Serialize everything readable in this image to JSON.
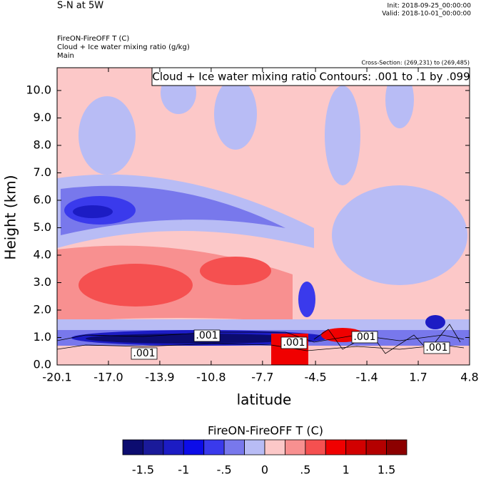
{
  "chart_data": {
    "type": "contour",
    "title": "S-N at 5W",
    "init": "Init: 2018-09-25_00:00:00",
    "valid": "Valid: 2018-10-01_00:00:00",
    "field_title": "FireON-FireOFF T   (C)",
    "contour_title": "Cloud + Ice water mixing ratio   (g/kg)",
    "subtitle": "Main",
    "cross_section": "Cross-Section: (269,231) to (269,485)",
    "contour_info": "Cloud + Ice water mixing ratio Contours: .001 to .1 by .099",
    "y_label": "Height (km)",
    "x_label": "latitude",
    "xlim": [
      -20.1,
      4.8
    ],
    "ylim": [
      0,
      10.83
    ],
    "xticks": [
      -20.1,
      {
        "value": -17,
        "label": "-17.0"
      },
      -13.9,
      -10.8,
      -7.7,
      -4.5,
      -1.4,
      1.7,
      4.8
    ],
    "yticks": [
      {
        "value": 0,
        "label": "0.0"
      },
      {
        "value": 1,
        "label": "1.0"
      },
      {
        "value": 2,
        "label": "2.0"
      },
      {
        "value": 3,
        "label": "3.0"
      },
      {
        "value": 4,
        "label": "4.0"
      },
      {
        "value": 5,
        "label": "5.0"
      },
      {
        "value": 6,
        "label": "6.0"
      },
      {
        "value": 7,
        "label": "7.0"
      },
      {
        "value": 8,
        "label": "8.0"
      },
      {
        "value": 9,
        "label": "9.0"
      },
      {
        "value": 10,
        "label": "10.0"
      }
    ],
    "contour_labels": [
      ".001",
      ".001",
      ".001",
      ".001",
      ".001"
    ],
    "colorbar": {
      "title": "FireON-FireOFF T  (C)",
      "lim": [
        -1.75,
        1.75
      ],
      "colors": [
        "#0c0c70",
        "#1a1a9a",
        "#1c1cc4",
        "#0c0ce8",
        "#3a3aec",
        "#7878ec",
        "#b8bcf5",
        "#fcc8c8",
        "#f89090",
        "#f55050",
        "#f00000",
        "#d20000",
        "#b40000",
        "#8c0000"
      ],
      "ticks": [
        -1.5,
        -1,
        {
          "value": -0.5,
          "label": "-.5"
        },
        0,
        {
          "value": 0.5,
          "label": ".5"
        },
        1,
        1.5
      ]
    }
  }
}
